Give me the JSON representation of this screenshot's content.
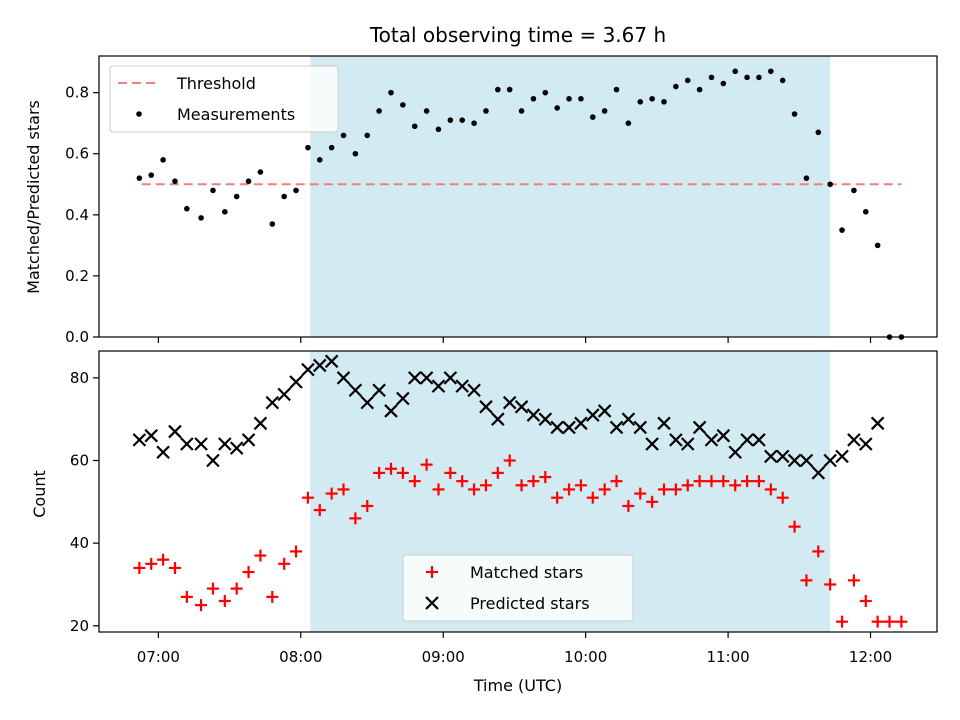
{
  "chart_data": [
    {
      "type": "scatter",
      "title": "Total observing time = 3.67 h",
      "ylabel": "Matched/Predicted stars",
      "xlabel": "",
      "ylim": [
        0.0,
        0.92
      ],
      "yticks": [
        "0.0",
        "0.2",
        "0.4",
        "0.6",
        "0.8"
      ],
      "highlight_span": {
        "start": "08:04",
        "end": "11:43",
        "color": "#add8e6"
      },
      "legend_position": "upper-left",
      "threshold": {
        "name": "Threshold",
        "value": 0.5,
        "x_start": "06:53",
        "x_end": "12:13",
        "color": "#f08080"
      },
      "series": [
        {
          "name": "Measurements",
          "color": "#000000",
          "marker": "dot",
          "x": [
            "06:52",
            "06:57",
            "07:02",
            "07:07",
            "07:12",
            "07:18",
            "07:23",
            "07:28",
            "07:33",
            "07:38",
            "07:43",
            "07:48",
            "07:53",
            "07:58",
            "08:03",
            "08:08",
            "08:13",
            "08:18",
            "08:23",
            "08:28",
            "08:33",
            "08:38",
            "08:43",
            "08:48",
            "08:53",
            "08:58",
            "09:03",
            "09:08",
            "09:13",
            "09:18",
            "09:23",
            "09:28",
            "09:33",
            "09:38",
            "09:43",
            "09:48",
            "09:53",
            "09:58",
            "10:03",
            "10:08",
            "10:13",
            "10:18",
            "10:23",
            "10:28",
            "10:33",
            "10:38",
            "10:43",
            "10:48",
            "10:53",
            "10:58",
            "11:03",
            "11:08",
            "11:13",
            "11:18",
            "11:23",
            "11:28",
            "11:33",
            "11:38",
            "11:43",
            "11:48",
            "11:53",
            "11:58",
            "12:03",
            "12:08",
            "12:13"
          ],
          "y": [
            0.52,
            0.53,
            0.58,
            0.51,
            0.42,
            0.39,
            0.48,
            0.41,
            0.46,
            0.51,
            0.54,
            0.37,
            0.46,
            0.48,
            0.62,
            0.58,
            0.62,
            0.66,
            0.6,
            0.66,
            0.74,
            0.8,
            0.76,
            0.69,
            0.74,
            0.68,
            0.71,
            0.71,
            0.7,
            0.74,
            0.81,
            0.81,
            0.74,
            0.78,
            0.8,
            0.75,
            0.78,
            0.78,
            0.72,
            0.74,
            0.81,
            0.7,
            0.77,
            0.78,
            0.77,
            0.82,
            0.84,
            0.81,
            0.85,
            0.83,
            0.87,
            0.85,
            0.85,
            0.87,
            0.84,
            0.73,
            0.52,
            0.67,
            0.5,
            0.35,
            0.48,
            0.41,
            0.3,
            0.0,
            0.0
          ]
        }
      ]
    },
    {
      "type": "scatter",
      "title": "",
      "ylabel": "Count",
      "xlabel": "Time (UTC)",
      "xticks": [
        "07:00",
        "08:00",
        "09:00",
        "10:00",
        "11:00",
        "12:00"
      ],
      "xlim": [
        "06:35",
        "12:28"
      ],
      "ylim": [
        18.5,
        86.5
      ],
      "yticks": [
        "20",
        "40",
        "60",
        "80"
      ],
      "highlight_span": {
        "start": "08:04",
        "end": "11:43",
        "color": "#add8e6"
      },
      "legend_position": "lower-center",
      "series": [
        {
          "name": "Matched stars",
          "color": "#ff0000",
          "marker": "plus",
          "x": [
            "06:52",
            "06:57",
            "07:02",
            "07:07",
            "07:12",
            "07:18",
            "07:23",
            "07:28",
            "07:33",
            "07:38",
            "07:43",
            "07:48",
            "07:53",
            "07:58",
            "08:03",
            "08:08",
            "08:13",
            "08:18",
            "08:23",
            "08:28",
            "08:33",
            "08:38",
            "08:43",
            "08:48",
            "08:53",
            "08:58",
            "09:03",
            "09:08",
            "09:13",
            "09:18",
            "09:23",
            "09:28",
            "09:33",
            "09:38",
            "09:43",
            "09:48",
            "09:53",
            "09:58",
            "10:03",
            "10:08",
            "10:13",
            "10:18",
            "10:23",
            "10:28",
            "10:33",
            "10:38",
            "10:43",
            "10:48",
            "10:53",
            "10:58",
            "11:03",
            "11:08",
            "11:13",
            "11:18",
            "11:23",
            "11:28",
            "11:33",
            "11:38",
            "11:43",
            "11:48",
            "11:53",
            "11:58",
            "12:03",
            "12:08",
            "12:13"
          ],
          "y": [
            34,
            35,
            36,
            34,
            27,
            25,
            29,
            26,
            29,
            33,
            37,
            27,
            35,
            38,
            51,
            48,
            52,
            53,
            46,
            49,
            57,
            58,
            57,
            55,
            59,
            53,
            57,
            55,
            53,
            54,
            57,
            60,
            54,
            55,
            56,
            51,
            53,
            54,
            51,
            53,
            55,
            49,
            52,
            50,
            53,
            53,
            54,
            55,
            55,
            55,
            54,
            55,
            55,
            53,
            51,
            44,
            31,
            38,
            30,
            21,
            31,
            26,
            21,
            21,
            21
          ]
        },
        {
          "name": "Predicted stars",
          "color": "#000000",
          "marker": "x",
          "x": [
            "06:52",
            "06:57",
            "07:02",
            "07:07",
            "07:12",
            "07:18",
            "07:23",
            "07:28",
            "07:33",
            "07:38",
            "07:43",
            "07:48",
            "07:53",
            "07:58",
            "08:03",
            "08:08",
            "08:13",
            "08:18",
            "08:23",
            "08:28",
            "08:33",
            "08:38",
            "08:43",
            "08:48",
            "08:53",
            "08:58",
            "09:03",
            "09:08",
            "09:13",
            "09:18",
            "09:23",
            "09:28",
            "09:33",
            "09:38",
            "09:43",
            "09:48",
            "09:53",
            "09:58",
            "10:03",
            "10:08",
            "10:13",
            "10:18",
            "10:23",
            "10:28",
            "10:33",
            "10:38",
            "10:43",
            "10:48",
            "10:53",
            "10:58",
            "11:03",
            "11:08",
            "11:13",
            "11:18",
            "11:23",
            "11:28",
            "11:33",
            "11:38",
            "11:43",
            "11:48",
            "11:53",
            "11:58",
            "12:03"
          ],
          "y": [
            65,
            66,
            62,
            67,
            64,
            64,
            60,
            64,
            63,
            65,
            69,
            74,
            76,
            79,
            82,
            83,
            84,
            80,
            77,
            74,
            77,
            72,
            75,
            80,
            80,
            78,
            80,
            78,
            77,
            73,
            70,
            74,
            73,
            71,
            70,
            68,
            68,
            69,
            71,
            72,
            68,
            70,
            68,
            64,
            69,
            65,
            64,
            68,
            65,
            66,
            62,
            65,
            65,
            61,
            61,
            60,
            60,
            57,
            60,
            61,
            65,
            64,
            69
          ]
        }
      ]
    }
  ]
}
